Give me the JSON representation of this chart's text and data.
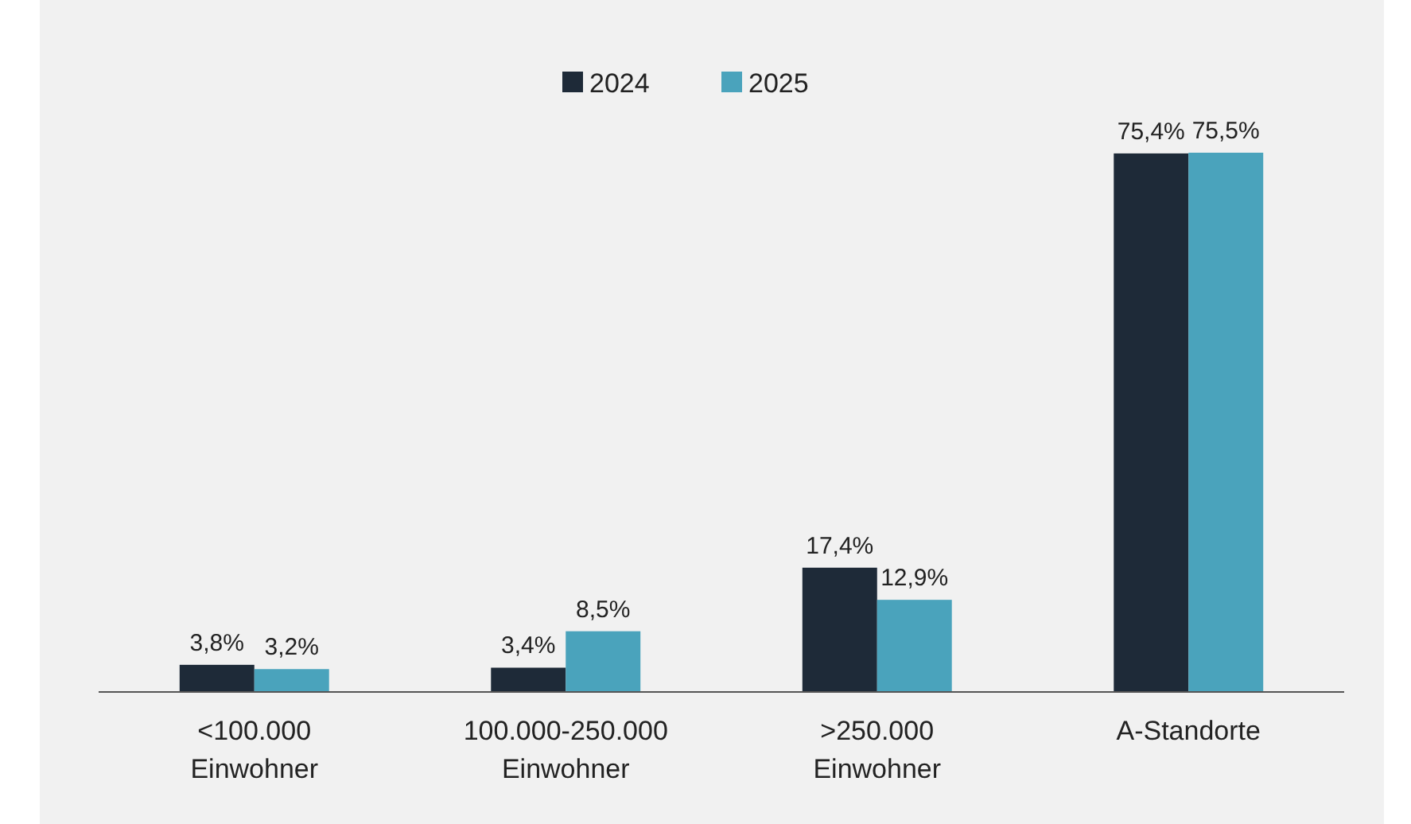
{
  "chart_data": {
    "type": "bar",
    "categories": [
      "<100.000 Einwohner",
      "100.000-250.000 Einwohner",
      ">250.000 Einwohner",
      "A-Standorte"
    ],
    "series": [
      {
        "name": "2024",
        "color": "#1e2a38",
        "values": [
          3.8,
          3.4,
          17.4,
          75.4
        ],
        "value_labels": [
          "3,8%",
          "3,4%",
          "17,4%",
          "75,4%"
        ]
      },
      {
        "name": "2025",
        "color": "#4aa3bc",
        "values": [
          3.2,
          8.5,
          12.9,
          75.5
        ],
        "value_labels": [
          "3,2%",
          "8,5%",
          "12,9%",
          "75,5%"
        ]
      }
    ],
    "legend": "top"
  }
}
